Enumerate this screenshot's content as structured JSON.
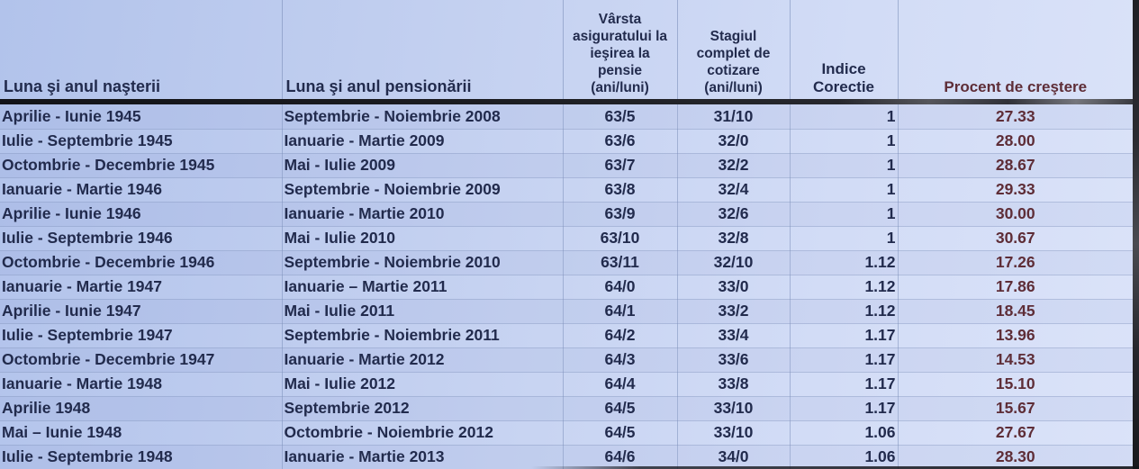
{
  "table": {
    "headers": [
      "Luna şi anul naşterii",
      "Luna şi anul pensionării",
      "Vârsta asiguratului la ieşirea la pensie (ani/luni)",
      "Stagiul complet de cotizare (ani/luni)",
      "Indice Corectie",
      "Procent de creştere"
    ],
    "columns": [
      "birth-period",
      "retirement-period",
      "retirement-age",
      "contribution-period",
      "correction-index",
      "growth-percent"
    ],
    "rows": [
      [
        "Aprilie - Iunie 1945",
        "Septembrie - Noiembrie 2008",
        "63/5",
        "31/10",
        "1",
        "27.33"
      ],
      [
        "Iulie - Septembrie 1945",
        "Ianuarie - Martie 2009",
        "63/6",
        "32/0",
        "1",
        "28.00"
      ],
      [
        "Octombrie - Decembrie 1945",
        "Mai - Iulie 2009",
        "63/7",
        "32/2",
        "1",
        "28.67"
      ],
      [
        "Ianuarie - Martie 1946",
        "Septembrie - Noiembrie 2009",
        "63/8",
        "32/4",
        "1",
        "29.33"
      ],
      [
        "Aprilie - Iunie 1946",
        "Ianuarie - Martie 2010",
        "63/9",
        "32/6",
        "1",
        "30.00"
      ],
      [
        "Iulie - Septembrie 1946",
        "Mai - Iulie 2010",
        "63/10",
        "32/8",
        "1",
        "30.67"
      ],
      [
        "Octombrie - Decembrie 1946",
        "Septembrie - Noiembrie 2010",
        "63/11",
        "32/10",
        "1.12",
        "17.26"
      ],
      [
        "Ianuarie - Martie 1947",
        "Ianuarie – Martie 2011",
        "64/0",
        "33/0",
        "1.12",
        "17.86"
      ],
      [
        "Aprilie - Iunie 1947",
        "Mai - Iulie 2011",
        "64/1",
        "33/2",
        "1.12",
        "18.45"
      ],
      [
        "Iulie - Septembrie 1947",
        "Septembrie - Noiembrie 2011",
        "64/2",
        "33/4",
        "1.17",
        "13.96"
      ],
      [
        "Octombrie - Decembrie 1947",
        "Ianuarie - Martie 2012",
        "64/3",
        "33/6",
        "1.17",
        "14.53"
      ],
      [
        "Ianuarie - Martie 1948",
        "Mai - Iulie 2012",
        "64/4",
        "33/8",
        "1.17",
        "15.10"
      ],
      [
        "Aprilie 1948",
        "Septembrie 2012",
        "64/5",
        "33/10",
        "1.17",
        "15.67"
      ],
      [
        "Mai – Iunie 1948",
        "Octombrie - Noiembrie 2012",
        "64/5",
        "33/10",
        "1.06",
        "27.67"
      ],
      [
        "Iulie - Septembrie 1948",
        "Ianuarie - Martie 2013",
        "64/6",
        "34/0",
        "1.06",
        "28.30"
      ]
    ],
    "colors": {
      "text_navy": "#222b4d",
      "text_maroon": "#5e2d37",
      "background_left": "#b2c3eb",
      "background_right": "#dbe3f9",
      "header_divider": "#1b1c21"
    }
  }
}
